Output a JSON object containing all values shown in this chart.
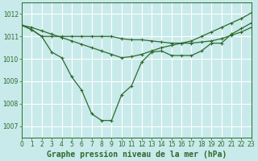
{
  "bg_color": "#c8eaea",
  "grid_color": "#b0d8d8",
  "line_color": "#2d6a2d",
  "title": "Graphe pression niveau de la mer (hPa)",
  "xlim": [
    0,
    23
  ],
  "ylim": [
    1006.5,
    1012.5
  ],
  "yticks": [
    1007,
    1008,
    1009,
    1010,
    1011,
    1012
  ],
  "xticks": [
    0,
    1,
    2,
    3,
    4,
    5,
    6,
    7,
    8,
    9,
    10,
    11,
    12,
    13,
    14,
    15,
    16,
    17,
    18,
    19,
    20,
    21,
    22,
    23
  ],
  "series1_x": [
    0,
    1,
    2,
    3,
    4,
    5,
    6,
    7,
    8,
    9,
    10,
    11,
    12,
    13,
    14,
    15,
    16,
    17,
    18,
    19,
    20,
    21,
    22,
    23
  ],
  "series1_y": [
    1011.5,
    1011.3,
    1011.0,
    1010.3,
    1010.05,
    1009.2,
    1008.6,
    1007.55,
    1007.25,
    1007.25,
    1008.4,
    1008.8,
    1009.85,
    1010.3,
    1010.35,
    1010.15,
    1010.15,
    1010.15,
    1010.35,
    1010.7,
    1010.7,
    1011.1,
    1011.35,
    1011.6
  ],
  "series2_x": [
    0,
    1,
    2,
    3,
    4,
    5,
    6,
    7,
    8,
    9,
    10,
    11,
    12,
    13,
    14,
    15,
    16,
    17,
    18,
    19,
    20,
    21,
    22,
    23
  ],
  "series2_y": [
    1011.5,
    1011.3,
    1011.0,
    1011.0,
    1011.0,
    1011.0,
    1011.0,
    1011.0,
    1011.0,
    1011.0,
    1010.9,
    1010.85,
    1010.85,
    1010.8,
    1010.75,
    1010.7,
    1010.7,
    1010.7,
    1010.75,
    1010.8,
    1010.9,
    1011.05,
    1011.2,
    1011.4
  ],
  "series3_x": [
    0,
    1,
    2,
    3,
    4,
    5,
    6,
    7,
    8,
    9,
    10,
    11,
    12,
    13,
    14,
    15,
    16,
    17,
    18,
    19,
    20,
    21,
    22,
    23
  ],
  "series3_y": [
    1011.5,
    1011.4,
    1011.25,
    1011.1,
    1010.95,
    1010.8,
    1010.65,
    1010.5,
    1010.35,
    1010.2,
    1010.05,
    1010.1,
    1010.2,
    1010.35,
    1010.5,
    1010.6,
    1010.7,
    1010.8,
    1011.0,
    1011.2,
    1011.4,
    1011.6,
    1011.8,
    1012.05
  ],
  "title_fontsize": 7.0,
  "tick_fontsize": 5.5
}
